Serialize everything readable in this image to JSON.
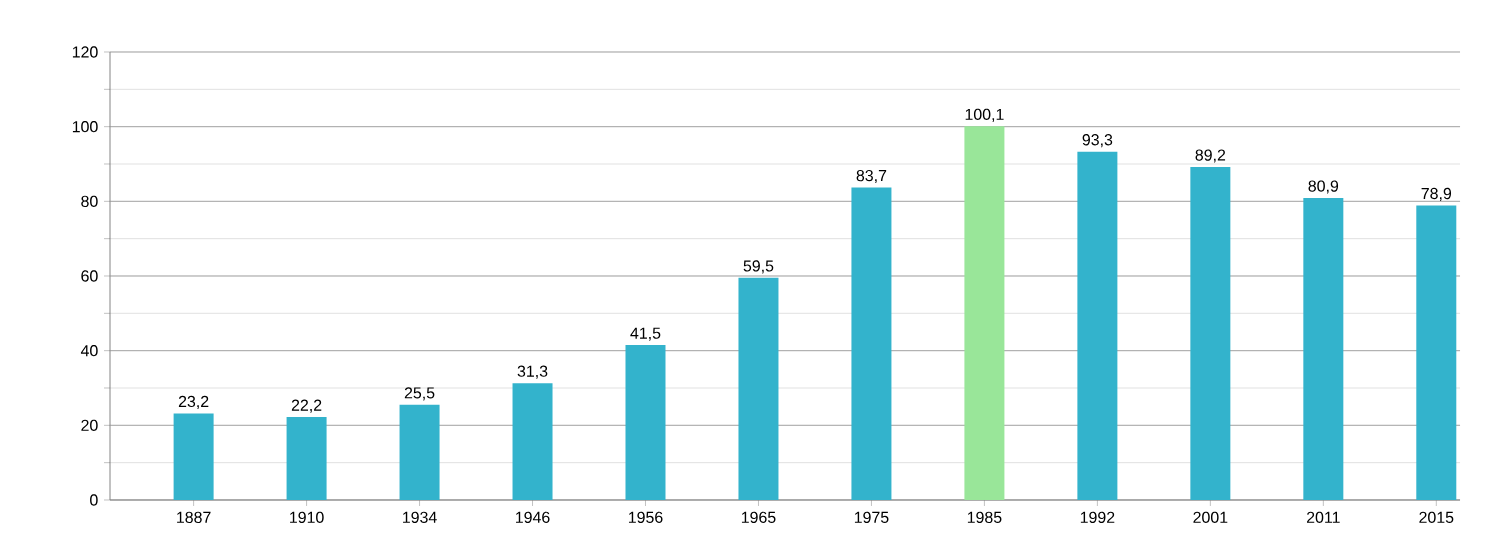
{
  "chart_data": {
    "type": "bar",
    "categories": [
      "1887",
      "1910",
      "1934",
      "1946",
      "1956",
      "1965",
      "1975",
      "1985",
      "1992",
      "2001",
      "2011",
      "2015"
    ],
    "values": [
      23.2,
      22.2,
      25.5,
      31.3,
      41.5,
      59.5,
      83.7,
      100.1,
      93.3,
      89.2,
      80.9,
      78.9
    ],
    "value_labels": [
      "23,2",
      "22,2",
      "25,5",
      "31,3",
      "41,5",
      "59,5",
      "83,7",
      "100,1",
      "93,3",
      "89,2",
      "80,9",
      "78,9"
    ],
    "colors": [
      "#33b3cc",
      "#33b3cc",
      "#33b3cc",
      "#33b3cc",
      "#33b3cc",
      "#33b3cc",
      "#33b3cc",
      "#99e699",
      "#33b3cc",
      "#33b3cc",
      "#33b3cc",
      "#33b3cc"
    ],
    "ylim": [
      0,
      120
    ],
    "yticks": [
      0,
      {
        "value": 10,
        "label": null
      },
      20,
      {
        "value": 30,
        "label": null
      },
      40,
      {
        "value": 50,
        "label": null
      },
      60,
      {
        "value": 70,
        "label": null
      },
      80,
      {
        "value": 90,
        "label": null
      },
      100,
      {
        "value": 110,
        "label": null
      },
      120
    ],
    "grid": "y"
  }
}
